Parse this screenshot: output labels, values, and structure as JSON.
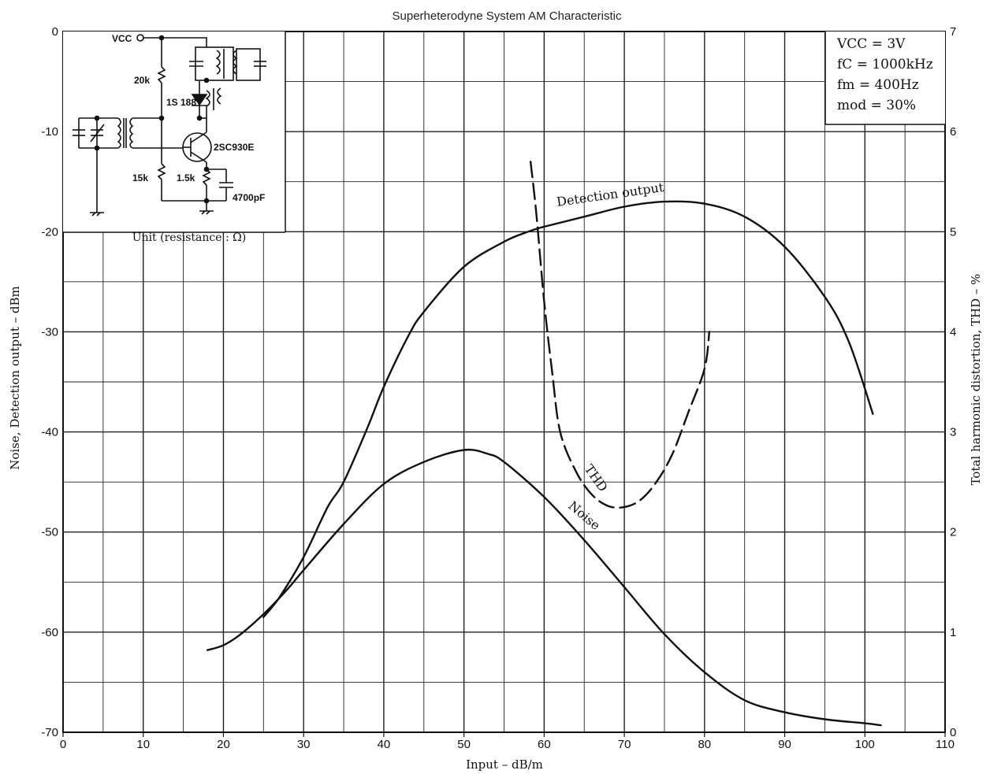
{
  "chart_data": {
    "type": "line",
    "title": "Superheterodyne System AM Characteristic",
    "xlabel": "Input – dB/m",
    "ylabel_left": "Noise, Detection output – dBm",
    "ylabel_right": "Total harmonic distortion, THD – %",
    "xlim": [
      0,
      110
    ],
    "ylim_left": [
      -70,
      0
    ],
    "ylim_right": [
      0,
      7
    ],
    "x_ticks": [
      "0",
      "10",
      "20",
      "30",
      "40",
      "50",
      "60",
      "70",
      "80",
      "90",
      "100",
      "110"
    ],
    "y_left_ticks": [
      "0",
      "-10",
      "-20",
      "-30",
      "-40",
      "-50",
      "-60",
      "-70"
    ],
    "y_right_ticks": [
      "7",
      "6",
      "5",
      "4",
      "3",
      "2",
      "1",
      "0"
    ],
    "grid": true,
    "series": [
      {
        "name": "Detection output",
        "axis": "left",
        "style": "solid",
        "points": [
          [
            25,
            -58.5
          ],
          [
            27,
            -56.5
          ],
          [
            30,
            -52.5
          ],
          [
            33,
            -47.5
          ],
          [
            35,
            -45
          ],
          [
            38,
            -39.5
          ],
          [
            40,
            -35.5
          ],
          [
            43,
            -30.5
          ],
          [
            45,
            -28
          ],
          [
            50,
            -23.5
          ],
          [
            55,
            -21
          ],
          [
            58,
            -20
          ],
          [
            60,
            -19.5
          ],
          [
            65,
            -18.5
          ],
          [
            70,
            -17.5
          ],
          [
            75,
            -17
          ],
          [
            80,
            -17.2
          ],
          [
            85,
            -18.5
          ],
          [
            90,
            -21.5
          ],
          [
            95,
            -26.5
          ],
          [
            98,
            -31
          ],
          [
            101,
            -38.2
          ]
        ]
      },
      {
        "name": "Noise",
        "axis": "left",
        "style": "solid",
        "points": [
          [
            18,
            -61.8
          ],
          [
            20,
            -61.3
          ],
          [
            22,
            -60.3
          ],
          [
            25,
            -58.2
          ],
          [
            28,
            -55.7
          ],
          [
            30,
            -53.8
          ],
          [
            35,
            -49.2
          ],
          [
            40,
            -45.2
          ],
          [
            45,
            -43
          ],
          [
            50,
            -41.8
          ],
          [
            53,
            -42.2
          ],
          [
            55,
            -43
          ],
          [
            60,
            -46.5
          ],
          [
            65,
            -50.8
          ],
          [
            70,
            -55.5
          ],
          [
            75,
            -60.2
          ],
          [
            80,
            -64
          ],
          [
            85,
            -66.8
          ],
          [
            90,
            -68
          ],
          [
            95,
            -68.7
          ],
          [
            100,
            -69.1
          ],
          [
            102,
            -69.3
          ]
        ]
      },
      {
        "name": "THD",
        "axis": "right",
        "style": "dashed",
        "points": [
          [
            58.3,
            5.7
          ],
          [
            59,
            5.2
          ],
          [
            60,
            4.3
          ],
          [
            61,
            3.6
          ],
          [
            62,
            3.0
          ],
          [
            64,
            2.6
          ],
          [
            66,
            2.37
          ],
          [
            68,
            2.26
          ],
          [
            70,
            2.25
          ],
          [
            72,
            2.32
          ],
          [
            74,
            2.5
          ],
          [
            76,
            2.78
          ],
          [
            78,
            3.2
          ],
          [
            80,
            3.63
          ],
          [
            80.6,
            4.0
          ]
        ]
      }
    ],
    "annotations": {
      "conditions": [
        "VCC = 3V",
        "fC = 1000kHz",
        "fm = 400Hz",
        "mod = 30%"
      ],
      "inset_caption": "Unit (resistance : Ω)",
      "inset_labels": {
        "vcc": "VCC",
        "r1": "20k",
        "r2": "15k",
        "r3": "1.5k",
        "diode": "1S 188",
        "transistor": "2SC930E",
        "capacitor": "4700pF"
      }
    }
  }
}
